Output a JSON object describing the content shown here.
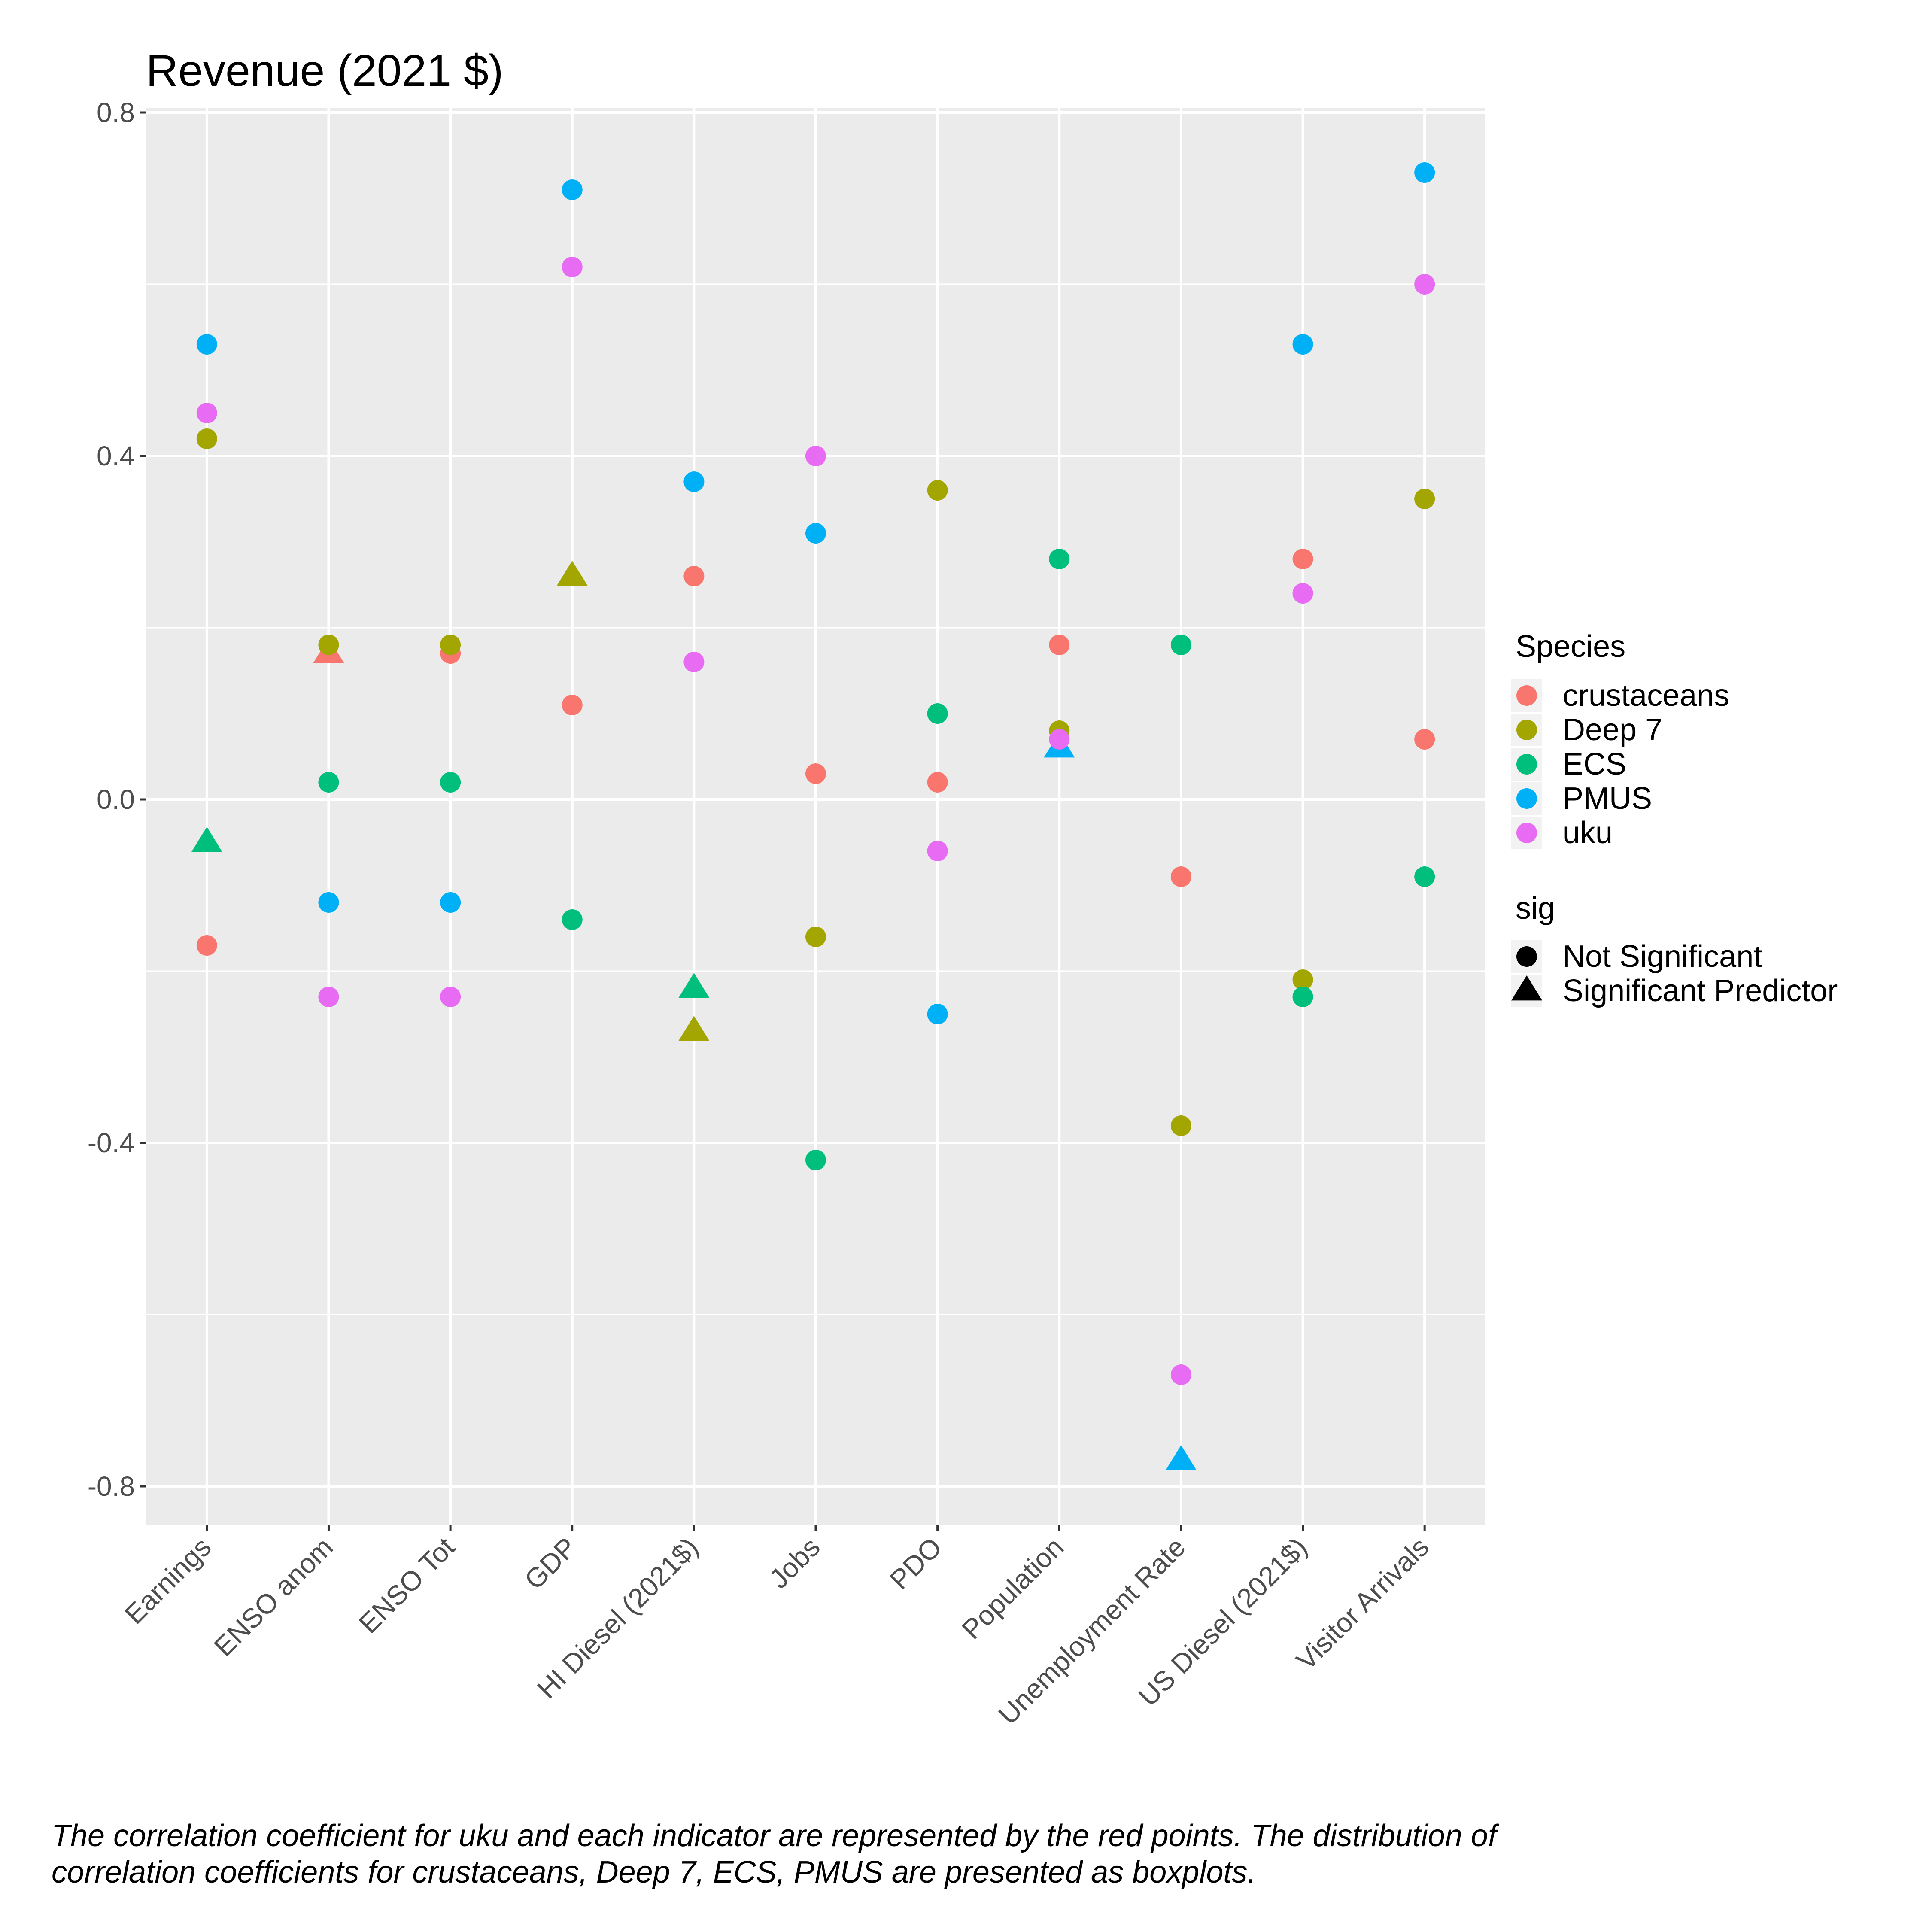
{
  "chart_data": {
    "type": "scatter",
    "title": "Revenue (2021 $)",
    "xlabel": "",
    "ylabel": "",
    "categories": [
      "Earnings",
      "ENSO anom",
      "ENSO Tot",
      "GDP",
      "HI Diesel (2021$)",
      "Jobs",
      "PDO",
      "Population",
      "Unemployment Rate",
      "US Diesel (2021$)",
      "Visitor Arrivals"
    ],
    "ylim": [
      -0.845,
      0.805
    ],
    "yticks": [
      -0.8,
      -0.4,
      0.0,
      0.4,
      0.8
    ],
    "ytick_labels": [
      "-0.8",
      "-0.4",
      "0.0",
      "0.4",
      "0.8"
    ],
    "grid": true,
    "legend_position": "right",
    "colors": {
      "crustaceans": "#F8766D",
      "Deep 7": "#A3A500",
      "ECS": "#00BF7D",
      "PMUS": "#00B0F6",
      "uku": "#E76BF3",
      "panel": "#EBEBEB",
      "gridline": "#FFFFFF"
    },
    "series": [
      {
        "name": "crustaceans",
        "color": "#F8766D",
        "values": [
          -0.17,
          0.17,
          0.17,
          0.11,
          0.26,
          0.03,
          0.02,
          0.18,
          -0.09,
          0.28,
          0.07
        ],
        "sig": [
          "Not Significant",
          "Significant Predictor",
          "Not Significant",
          "Not Significant",
          "Not Significant",
          "Not Significant",
          "Not Significant",
          "Not Significant",
          "Not Significant",
          "Not Significant",
          "Not Significant"
        ]
      },
      {
        "name": "Deep 7",
        "color": "#A3A500",
        "values": [
          0.42,
          0.18,
          0.18,
          0.26,
          -0.27,
          -0.16,
          0.36,
          0.08,
          -0.38,
          -0.21,
          0.35
        ],
        "sig": [
          "Not Significant",
          "Not Significant",
          "Not Significant",
          "Significant Predictor",
          "Significant Predictor",
          "Not Significant",
          "Not Significant",
          "Not Significant",
          "Not Significant",
          "Not Significant",
          "Not Significant"
        ]
      },
      {
        "name": "ECS",
        "color": "#00BF7D",
        "values": [
          -0.05,
          0.02,
          0.02,
          -0.14,
          -0.22,
          -0.42,
          0.1,
          0.28,
          0.18,
          -0.23,
          -0.09
        ],
        "sig": [
          "Significant Predictor",
          "Not Significant",
          "Not Significant",
          "Not Significant",
          "Significant Predictor",
          "Not Significant",
          "Not Significant",
          "Not Significant",
          "Not Significant",
          "Not Significant",
          "Not Significant"
        ]
      },
      {
        "name": "PMUS",
        "color": "#00B0F6",
        "values": [
          0.53,
          -0.12,
          -0.12,
          0.71,
          0.37,
          0.31,
          -0.25,
          0.06,
          -0.77,
          0.53,
          0.73
        ],
        "sig": [
          "Not Significant",
          "Not Significant",
          "Not Significant",
          "Not Significant",
          "Not Significant",
          "Not Significant",
          "Not Significant",
          "Significant Predictor",
          "Significant Predictor",
          "Not Significant",
          "Not Significant"
        ]
      },
      {
        "name": "uku",
        "color": "#E76BF3",
        "values": [
          0.45,
          -0.23,
          -0.23,
          0.62,
          0.16,
          0.4,
          -0.06,
          0.07,
          -0.67,
          0.24,
          0.6
        ],
        "sig": [
          "Not Significant",
          "Not Significant",
          "Not Significant",
          "Not Significant",
          "Not Significant",
          "Not Significant",
          "Not Significant",
          "Not Significant",
          "Not Significant",
          "Not Significant",
          "Not Significant"
        ]
      }
    ],
    "legend": {
      "color_title": "Species",
      "color_entries": [
        "crustaceans",
        "Deep 7",
        "ECS",
        "PMUS",
        "uku"
      ],
      "shape_title": "sig",
      "shape_entries": [
        "Not Significant",
        "Significant Predictor"
      ]
    }
  },
  "caption": {
    "line1": "The correlation coefficient for uku and each indicator are represented by the red points. The distribution of",
    "line2": " correlation coefficients for crustaceans, Deep 7, ECS, PMUS are presented as boxplots."
  }
}
